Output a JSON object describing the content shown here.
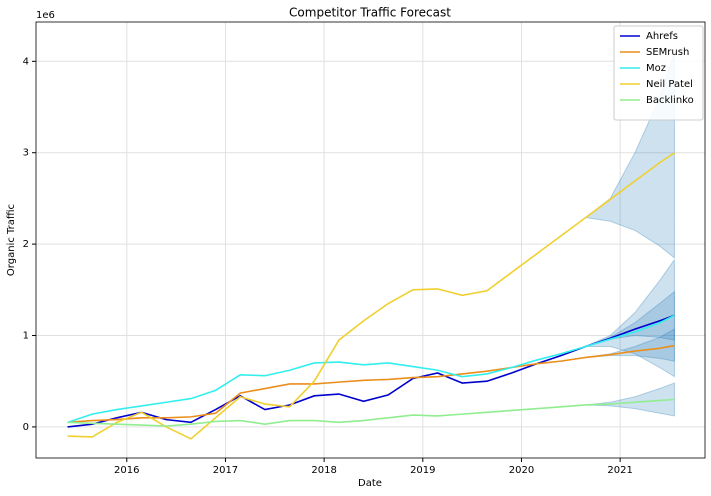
{
  "chart_data": {
    "type": "line",
    "title": "Competitor Traffic Forecast",
    "x_label": "Date",
    "y_label": "Organic Traffic",
    "y_offset_label": "1e6",
    "x": [
      2015.4,
      2015.65,
      2015.9,
      2016.15,
      2016.4,
      2016.65,
      2016.9,
      2017.15,
      2017.4,
      2017.65,
      2017.9,
      2018.15,
      2018.4,
      2018.65,
      2018.9,
      2019.15,
      2019.4,
      2019.65,
      2019.9,
      2020.15,
      2020.4,
      2020.65,
      2020.9,
      2021.15,
      2021.4,
      2021.55
    ],
    "xlim": [
      2015.08,
      2021.86
    ],
    "xticks": [
      2016,
      2017,
      2018,
      2019,
      2020,
      2021
    ],
    "ylim": [
      -0.34,
      4.43
    ],
    "yticks": [
      0,
      1,
      2,
      3,
      4
    ],
    "grid": true,
    "legend": "upper right",
    "band_color": "#1f77b4",
    "series": [
      {
        "name": "Ahrefs",
        "color": "#0000cd",
        "values": [
          0,
          0.03,
          0.1,
          0.16,
          0.08,
          0.05,
          0.19,
          0.34,
          0.19,
          0.24,
          0.34,
          0.36,
          0.28,
          0.35,
          0.53,
          0.59,
          0.48,
          0.5,
          0.59,
          0.69,
          0.78,
          0.88,
          0.97,
          1.07,
          1.16,
          1.22
        ],
        "upper": [
          null,
          null,
          null,
          null,
          null,
          null,
          null,
          null,
          null,
          null,
          null,
          null,
          null,
          null,
          null,
          null,
          null,
          null,
          null,
          null,
          null,
          0.88,
          0.98,
          1.14,
          1.35,
          1.48
        ],
        "lower": [
          null,
          null,
          null,
          null,
          null,
          null,
          null,
          null,
          null,
          null,
          null,
          null,
          null,
          null,
          null,
          null,
          null,
          null,
          null,
          null,
          null,
          0.88,
          0.96,
          1.0,
          0.98,
          0.95
        ]
      },
      {
        "name": "SEMrush",
        "color": "#ea8f1c",
        "values": [
          0.05,
          0.07,
          0.08,
          0.1,
          0.1,
          0.11,
          0.15,
          0.37,
          0.42,
          0.47,
          0.47,
          0.49,
          0.51,
          0.52,
          0.54,
          0.55,
          0.58,
          0.61,
          0.65,
          0.69,
          0.72,
          0.76,
          0.79,
          0.83,
          0.86,
          0.89
        ],
        "upper": [
          null,
          null,
          null,
          null,
          null,
          null,
          null,
          null,
          null,
          null,
          null,
          null,
          null,
          null,
          null,
          null,
          null,
          null,
          null,
          null,
          null,
          0.76,
          0.8,
          0.88,
          0.98,
          1.07
        ],
        "lower": [
          null,
          null,
          null,
          null,
          null,
          null,
          null,
          null,
          null,
          null,
          null,
          null,
          null,
          null,
          null,
          null,
          null,
          null,
          null,
          null,
          null,
          0.76,
          0.78,
          0.78,
          0.75,
          0.72
        ]
      },
      {
        "name": "Moz",
        "color": "#33eeee",
        "values": [
          0.05,
          0.14,
          0.19,
          0.23,
          0.27,
          0.31,
          0.4,
          0.57,
          0.56,
          0.62,
          0.7,
          0.71,
          0.68,
          0.7,
          0.66,
          0.62,
          0.55,
          0.58,
          0.65,
          0.73,
          0.8,
          0.88,
          0.96,
          1.04,
          1.14,
          1.22
        ],
        "upper": [
          null,
          null,
          null,
          null,
          null,
          null,
          null,
          null,
          null,
          null,
          null,
          null,
          null,
          null,
          null,
          null,
          null,
          null,
          null,
          null,
          null,
          0.88,
          1.0,
          1.25,
          1.6,
          1.83
        ],
        "lower": [
          null,
          null,
          null,
          null,
          null,
          null,
          null,
          null,
          null,
          null,
          null,
          null,
          null,
          null,
          null,
          null,
          null,
          null,
          null,
          null,
          null,
          0.88,
          0.88,
          0.8,
          0.65,
          0.55
        ]
      },
      {
        "name": "Neil Patel",
        "color": "#f0d030",
        "values": [
          -0.1,
          -0.11,
          0.05,
          0.16,
          0.0,
          -0.13,
          0.1,
          0.33,
          0.25,
          0.22,
          0.5,
          0.95,
          1.16,
          1.35,
          1.5,
          1.51,
          1.44,
          1.49,
          1.69,
          1.89,
          2.09,
          2.29,
          2.49,
          2.69,
          2.89,
          3.0
        ],
        "upper": [
          null,
          null,
          null,
          null,
          null,
          null,
          null,
          null,
          null,
          null,
          null,
          null,
          null,
          null,
          null,
          null,
          null,
          null,
          null,
          null,
          null,
          2.29,
          2.5,
          3.0,
          3.6,
          4.1
        ],
        "lower": [
          null,
          null,
          null,
          null,
          null,
          null,
          null,
          null,
          null,
          null,
          null,
          null,
          null,
          null,
          null,
          null,
          null,
          null,
          null,
          null,
          null,
          2.29,
          2.25,
          2.15,
          1.98,
          1.85
        ]
      },
      {
        "name": "Backlinko",
        "color": "#90ee90",
        "values": [
          0.05,
          0.04,
          0.03,
          0.02,
          0.01,
          0.03,
          0.06,
          0.07,
          0.03,
          0.07,
          0.07,
          0.05,
          0.07,
          0.1,
          0.13,
          0.12,
          0.14,
          0.16,
          0.18,
          0.2,
          0.22,
          0.24,
          0.25,
          0.27,
          0.29,
          0.3
        ],
        "upper": [
          null,
          null,
          null,
          null,
          null,
          null,
          null,
          null,
          null,
          null,
          null,
          null,
          null,
          null,
          null,
          null,
          null,
          null,
          null,
          null,
          null,
          0.24,
          0.27,
          0.33,
          0.42,
          0.48
        ],
        "lower": [
          null,
          null,
          null,
          null,
          null,
          null,
          null,
          null,
          null,
          null,
          null,
          null,
          null,
          null,
          null,
          null,
          null,
          null,
          null,
          null,
          null,
          0.24,
          0.23,
          0.2,
          0.15,
          0.12
        ]
      }
    ]
  }
}
